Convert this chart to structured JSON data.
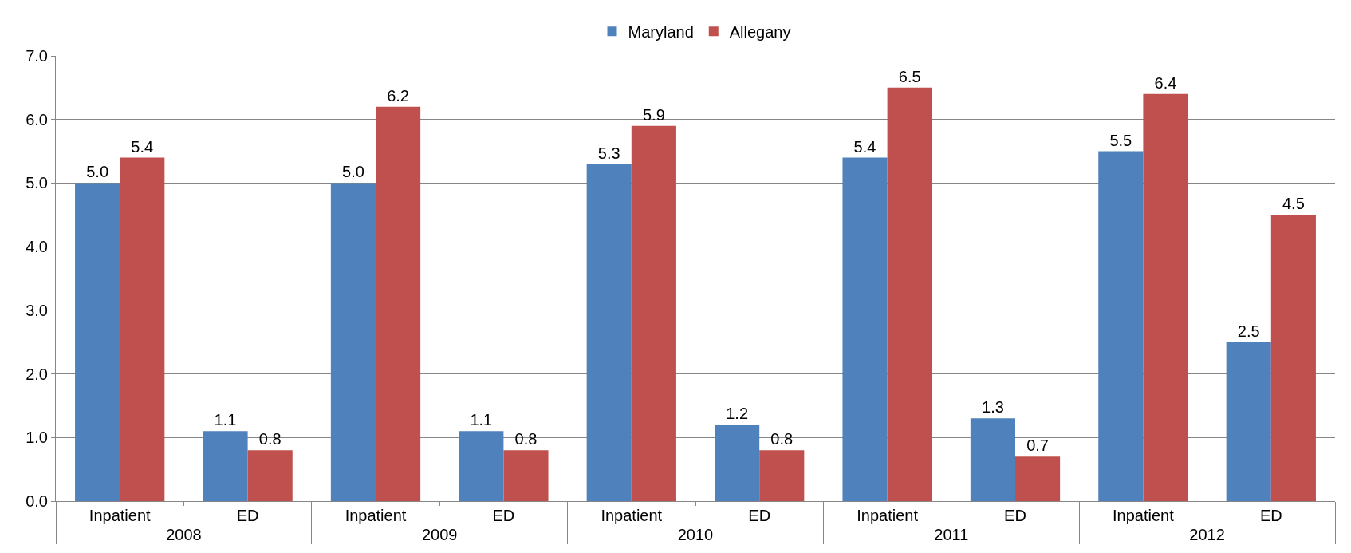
{
  "chart_data": {
    "type": "bar",
    "categories": [
      [
        "2008",
        "Inpatient"
      ],
      [
        null,
        "ED"
      ],
      [
        "2009",
        "Inpatient"
      ],
      [
        null,
        "ED"
      ],
      [
        "2010",
        "Inpatient"
      ],
      [
        null,
        "ED"
      ],
      [
        "2011",
        "Inpatient"
      ],
      [
        null,
        "ED"
      ],
      [
        "2012",
        "Inpatient"
      ],
      [
        null,
        "ED"
      ]
    ],
    "series": [
      {
        "name": "Maryland",
        "color": "#4f81bd",
        "values": [
          5.0,
          1.1,
          5.0,
          1.1,
          5.3,
          1.2,
          5.4,
          1.3,
          5.5,
          2.5
        ],
        "value_labels": [
          "5.0",
          "1.1",
          "5.0",
          "1.1",
          "5.3",
          "1.2",
          "5.4",
          "1.3",
          "5.5",
          "2.5"
        ]
      },
      {
        "name": "Allegany",
        "color": "#c0504d",
        "values": [
          5.4,
          0.8,
          6.2,
          0.8,
          5.9,
          0.8,
          6.5,
          0.7,
          6.4,
          4.5
        ],
        "value_labels": [
          "5.4",
          "0.8",
          "6.2",
          "0.8",
          "5.9",
          "0.8",
          "6.5",
          "0.7",
          "6.4",
          "4.5"
        ]
      }
    ],
    "ylim": [
      0,
      7
    ],
    "yticks": [
      {
        "value": 0,
        "label": "0.0"
      },
      {
        "value": 1,
        "label": "1.0"
      },
      {
        "value": 2,
        "label": "2.0"
      },
      {
        "value": 3,
        "label": "3.0"
      },
      {
        "value": 4,
        "label": "4.0"
      },
      {
        "value": 5,
        "label": "5.0"
      },
      {
        "value": 6,
        "label": "6.0"
      },
      {
        "value": 7,
        "label": "7.0"
      }
    ],
    "grid": "y",
    "legend": "top"
  }
}
